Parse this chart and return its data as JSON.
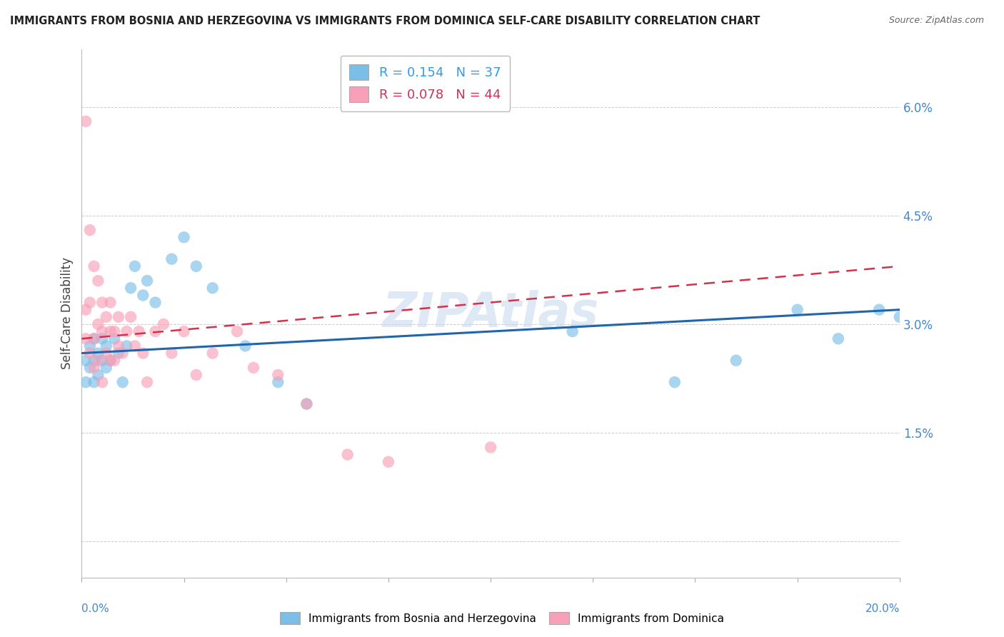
{
  "title": "IMMIGRANTS FROM BOSNIA AND HERZEGOVINA VS IMMIGRANTS FROM DOMINICA SELF-CARE DISABILITY CORRELATION CHART",
  "source": "Source: ZipAtlas.com",
  "ylabel": "Self-Care Disability",
  "xlim": [
    0.0,
    0.2
  ],
  "ylim": [
    -0.005,
    0.068
  ],
  "yticks": [
    0.0,
    0.015,
    0.03,
    0.045,
    0.06
  ],
  "ytick_labels": [
    "",
    "1.5%",
    "3.0%",
    "4.5%",
    "6.0%"
  ],
  "r_bosnia": 0.154,
  "n_bosnia": 37,
  "r_dominica": 0.078,
  "n_dominica": 44,
  "color_bosnia": "#7bbfe8",
  "color_dominica": "#f8a0b8",
  "line_color_bosnia": "#2166ac",
  "line_color_dominica": "#d6304a",
  "bosnia_x": [
    0.001,
    0.001,
    0.002,
    0.002,
    0.003,
    0.003,
    0.003,
    0.004,
    0.004,
    0.005,
    0.005,
    0.006,
    0.006,
    0.007,
    0.008,
    0.009,
    0.01,
    0.011,
    0.012,
    0.013,
    0.015,
    0.016,
    0.018,
    0.022,
    0.025,
    0.028,
    0.032,
    0.04,
    0.048,
    0.055,
    0.12,
    0.145,
    0.16,
    0.175,
    0.185,
    0.195,
    0.2
  ],
  "bosnia_y": [
    0.025,
    0.022,
    0.027,
    0.024,
    0.028,
    0.025,
    0.022,
    0.026,
    0.023,
    0.028,
    0.025,
    0.027,
    0.024,
    0.025,
    0.028,
    0.026,
    0.022,
    0.027,
    0.035,
    0.038,
    0.034,
    0.036,
    0.033,
    0.039,
    0.042,
    0.038,
    0.035,
    0.027,
    0.022,
    0.019,
    0.029,
    0.022,
    0.025,
    0.032,
    0.028,
    0.032,
    0.031
  ],
  "dominica_x": [
    0.001,
    0.001,
    0.001,
    0.002,
    0.002,
    0.002,
    0.003,
    0.003,
    0.003,
    0.004,
    0.004,
    0.004,
    0.005,
    0.005,
    0.005,
    0.006,
    0.006,
    0.007,
    0.007,
    0.007,
    0.008,
    0.008,
    0.009,
    0.009,
    0.01,
    0.011,
    0.012,
    0.013,
    0.014,
    0.015,
    0.016,
    0.018,
    0.02,
    0.022,
    0.025,
    0.028,
    0.032,
    0.038,
    0.042,
    0.048,
    0.055,
    0.065,
    0.075,
    0.1
  ],
  "dominica_y": [
    0.058,
    0.032,
    0.028,
    0.043,
    0.033,
    0.026,
    0.038,
    0.028,
    0.024,
    0.036,
    0.03,
    0.025,
    0.033,
    0.029,
    0.022,
    0.031,
    0.026,
    0.033,
    0.029,
    0.025,
    0.029,
    0.025,
    0.031,
    0.027,
    0.026,
    0.029,
    0.031,
    0.027,
    0.029,
    0.026,
    0.022,
    0.029,
    0.03,
    0.026,
    0.029,
    0.023,
    0.026,
    0.029,
    0.024,
    0.023,
    0.019,
    0.012,
    0.011,
    0.013
  ],
  "watermark": "ZIPAtlas",
  "background_color": "#ffffff",
  "grid_color": "#cccccc"
}
